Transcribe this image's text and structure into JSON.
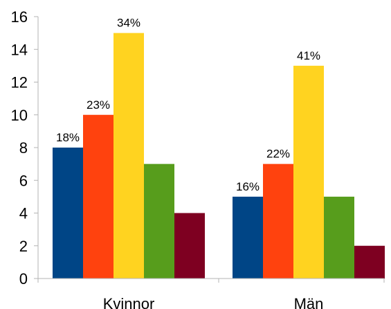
{
  "chart_data": {
    "type": "bar",
    "categories": [
      "Kvinnor",
      "Män"
    ],
    "series": [
      {
        "values": [
          8,
          5
        ],
        "color": "#004586"
      },
      {
        "values": [
          10,
          7
        ],
        "color": "#ff420e"
      },
      {
        "values": [
          15,
          13
        ],
        "color": "#ffd320"
      },
      {
        "values": [
          7,
          5
        ],
        "color": "#579d1c"
      },
      {
        "values": [
          4,
          2
        ],
        "color": "#7e0021"
      }
    ],
    "data_labels": [
      {
        "category_index": 0,
        "series_index": 0,
        "text": "18%"
      },
      {
        "category_index": 0,
        "series_index": 1,
        "text": "23%"
      },
      {
        "category_index": 0,
        "series_index": 2,
        "text": "34%"
      },
      {
        "category_index": 1,
        "series_index": 0,
        "text": "16%"
      },
      {
        "category_index": 1,
        "series_index": 1,
        "text": "22%"
      },
      {
        "category_index": 1,
        "series_index": 2,
        "text": "41%"
      }
    ],
    "yticks": [
      0,
      2,
      4,
      6,
      8,
      10,
      12,
      14,
      16
    ],
    "ylim": [
      0,
      16
    ],
    "title": "",
    "xlabel": "",
    "ylabel": "",
    "grid": false,
    "legend": "none"
  }
}
